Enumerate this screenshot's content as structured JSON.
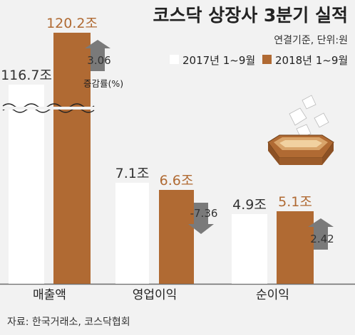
{
  "header": {
    "title": "코스닥 상장사 3분기 실적",
    "subtitle": "연결기준, 단위:원"
  },
  "colors": {
    "series_2017": "#ffffff",
    "series_2018": "#b06a33",
    "background": "#f2f2f2",
    "arrow": "#7a7a7a",
    "text": "#222222"
  },
  "change_label": "증감률(%)",
  "source": "자료: 한국거래소, 코스닥협회",
  "chart_data": {
    "type": "bar",
    "title": "코스닥 상장사 3분기 실적",
    "subtitle": "연결기준, 단위:원",
    "legend_position": "top-right",
    "categories": [
      "매출액",
      "영업이익",
      "순이익"
    ],
    "series": [
      {
        "name": "2017년 1~9월",
        "color": "#ffffff",
        "values": [
          116.7,
          7.1,
          4.9
        ],
        "labels": [
          "116.7조",
          "7.1조",
          "4.9조"
        ]
      },
      {
        "name": "2018년 1~9월",
        "color": "#b06a33",
        "values": [
          120.2,
          6.6,
          5.1
        ],
        "labels": [
          "120.2조",
          "6.6조",
          "5.1조"
        ]
      }
    ],
    "change_pct": [
      3.06,
      -7.36,
      2.42
    ],
    "change_labels": [
      "3.06",
      "-7.36",
      "2.42"
    ],
    "axis_break": "매출액"
  }
}
